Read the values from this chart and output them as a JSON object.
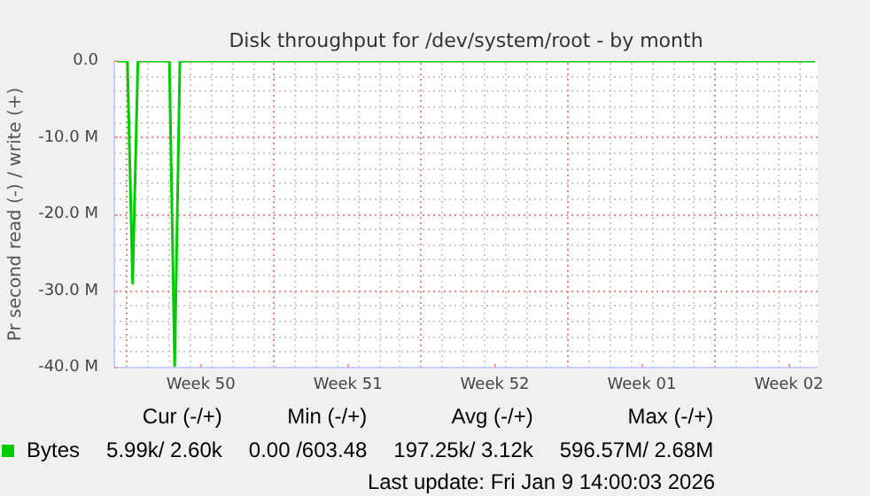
{
  "chart_data": {
    "type": "line",
    "title": "Disk throughput for /dev/system/root - by month",
    "ylabel": "Pr second read (-) / write (+)",
    "categories": [
      null,
      null,
      null,
      null,
      null,
      null,
      null,
      null,
      null,
      null,
      null,
      null,
      null,
      null,
      null,
      null,
      "Week 50",
      null,
      null,
      null,
      null,
      null,
      null,
      null,
      null,
      null,
      null,
      null,
      null,
      null,
      null,
      null,
      null,
      null,
      null,
      null,
      null,
      null,
      null,
      null,
      null,
      null,
      null,
      null,
      "Week 51",
      null,
      null,
      null,
      null,
      null,
      null,
      null,
      null,
      null,
      null,
      null,
      null,
      null,
      null,
      null,
      null,
      null,
      null,
      null,
      null,
      null,
      null,
      null,
      null,
      null,
      null,
      null,
      "Week 52",
      null,
      null,
      null,
      null,
      null,
      null,
      null,
      null,
      null,
      null,
      null,
      null,
      null,
      null,
      null,
      null,
      null,
      null,
      null,
      null,
      null,
      null,
      null,
      null,
      null,
      null,
      null,
      "Week 01",
      null,
      null,
      null,
      null,
      null,
      null,
      null,
      null,
      null,
      null,
      null,
      null,
      null,
      null,
      null,
      null,
      null,
      null,
      null,
      null,
      null,
      null,
      null,
      null,
      null,
      null,
      null,
      "Week 02",
      null,
      null,
      null,
      null,
      null
    ],
    "series": [
      {
        "name": "Bytes",
        "color": "#00cc00",
        "values": [
          0,
          0,
          0,
          -29000000,
          0,
          0,
          0,
          0,
          0,
          0,
          0,
          -40000000,
          0,
          0,
          0,
          0,
          0,
          0,
          0,
          0,
          0,
          0,
          0,
          0,
          0,
          0,
          0,
          0,
          0,
          0,
          0,
          0,
          0,
          0,
          0,
          0,
          0,
          0,
          0,
          0,
          0,
          0,
          0,
          0,
          0,
          0,
          0,
          0,
          0,
          0,
          0,
          0,
          0,
          0,
          0,
          0,
          0,
          0,
          0,
          0,
          0,
          0,
          0,
          0,
          0,
          0,
          0,
          0,
          0,
          0,
          0,
          0,
          0,
          0,
          0,
          0,
          0,
          0,
          0,
          0,
          0,
          0,
          0,
          0,
          0,
          0,
          0,
          0,
          0,
          0,
          0,
          0,
          0,
          0,
          0,
          0,
          0,
          0,
          0,
          0,
          0,
          0,
          0,
          0,
          0,
          0,
          0,
          0,
          0,
          0,
          0,
          0,
          0,
          0,
          0,
          0,
          0,
          0,
          0,
          0,
          0,
          0,
          0,
          0,
          0,
          0,
          0,
          0,
          0,
          0,
          0,
          0,
          0,
          0
        ]
      }
    ],
    "ylim": [
      -40000000,
      0
    ],
    "yticks": [
      {
        "value": -40000000,
        "label": "-40.0 M"
      },
      {
        "value": -30000000,
        "label": "-30.0 M"
      },
      {
        "value": -20000000,
        "label": "-20.0 M"
      },
      {
        "value": -10000000,
        "label": "-10.0 M"
      },
      {
        "value": 0,
        "label": "0.0"
      }
    ],
    "grid": true,
    "legend": "bottom",
    "annotations": [
      "Cur (-/+)",
      "Min (-/+)",
      "Avg (-/+)",
      "Max (-/+)",
      "5.99k/  2.60k",
      "0.00 /603.48",
      "197.25k/  3.12k",
      "596.57M/  2.68M",
      "Last update: Fri Jan  9 14:00:03 2026"
    ]
  }
}
